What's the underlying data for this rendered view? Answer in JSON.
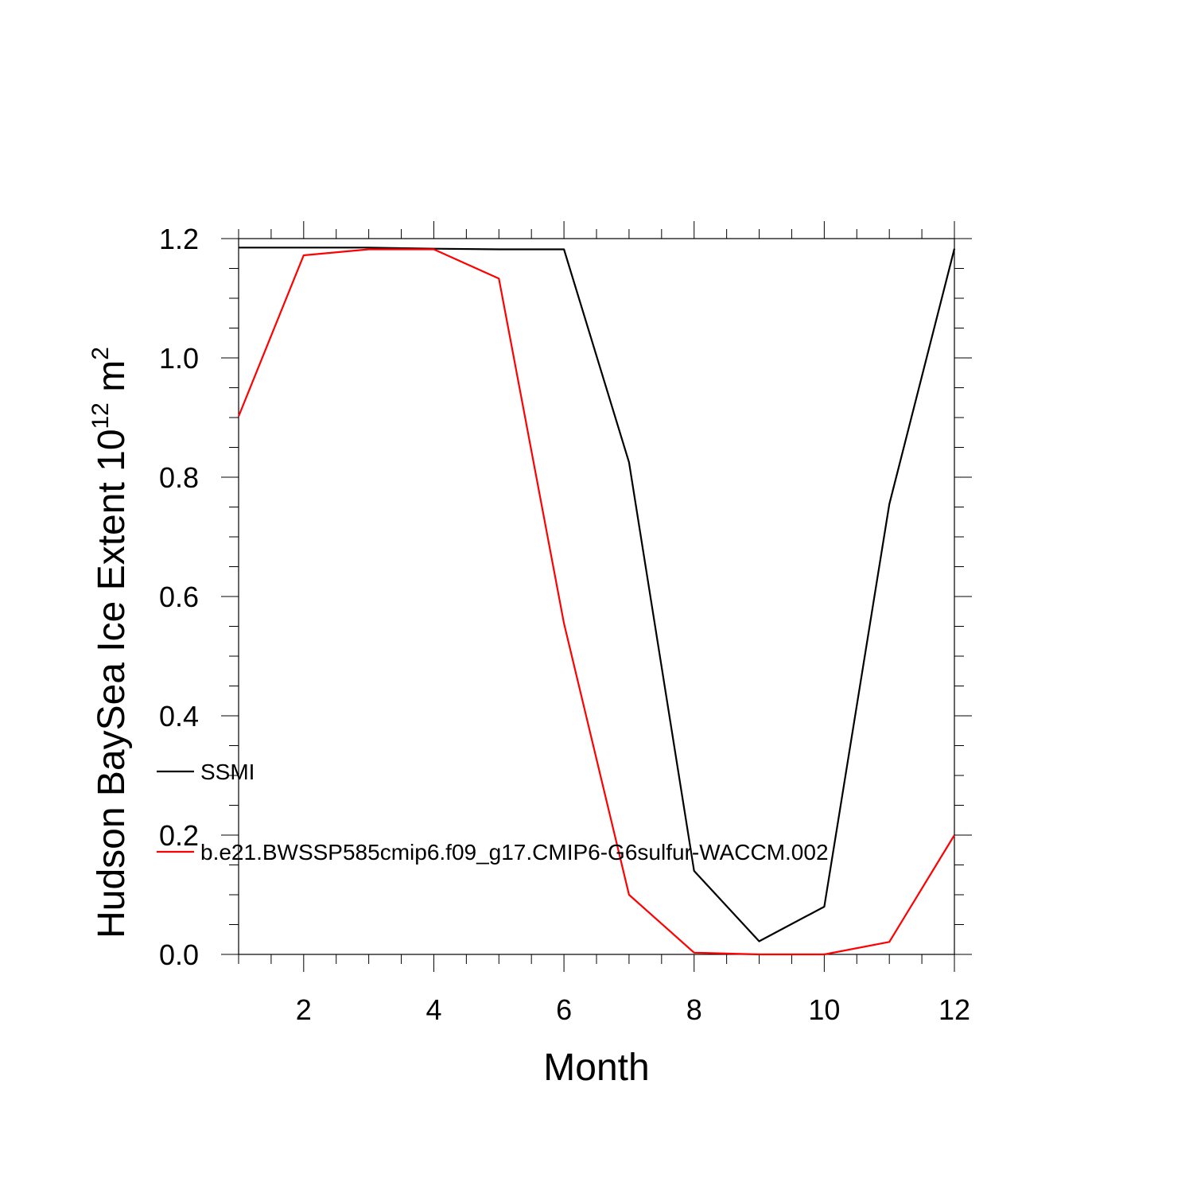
{
  "chart_data": {
    "type": "line",
    "xlabel": "Month",
    "ylabel": {
      "main": "Hudson BaySea Ice Extent 10",
      "superscript": "12",
      "unit": " m",
      "unit_superscript": "2"
    },
    "xlim": [
      1,
      12
    ],
    "ylim": [
      0,
      1.2
    ],
    "x_ticks": [
      2,
      4,
      6,
      8,
      10,
      12
    ],
    "x_tick_labels": [
      "2",
      "4",
      "6",
      "8",
      "10",
      "12"
    ],
    "y_ticks": [
      0,
      0.2,
      0.4,
      0.6,
      0.8,
      1.0,
      1.2
    ],
    "y_tick_labels": [
      "0.0",
      "0.2",
      "0.4",
      "0.6",
      "0.8",
      "1.0",
      "1.2"
    ],
    "grid": false,
    "legend_placement": "lower-left inside",
    "x": [
      1,
      2,
      3,
      4,
      5,
      6,
      7,
      8,
      9,
      10,
      11,
      12
    ],
    "series": [
      {
        "name": "SSMI",
        "color": "#000000",
        "values": [
          1.185,
          1.185,
          1.185,
          1.183,
          1.182,
          1.182,
          0.825,
          0.14,
          0.022,
          0.08,
          0.755,
          1.183
        ]
      },
      {
        "name": "b.e21.BWSSP585cmip6.f09_g17.CMIP6-G6sulfur-WACCM.002",
        "color": "#ff0000",
        "values": [
          0.902,
          1.172,
          1.182,
          1.182,
          1.133,
          0.555,
          0.1,
          0.003,
          0.0,
          0.0,
          0.021,
          0.2
        ]
      }
    ]
  }
}
